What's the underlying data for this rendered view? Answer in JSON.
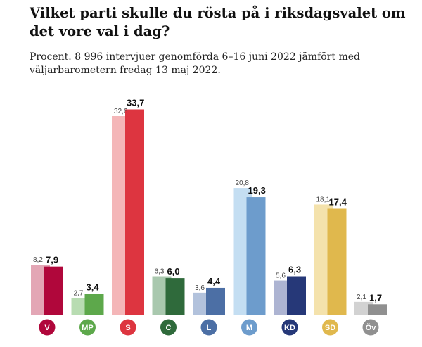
{
  "title": "Vilket parti skulle du rösta på i riksdagsvalet om det vore val i dag?",
  "subtitle": "Procent. 8 996 intervjuer genomförda 6–16 juni 2022 jämfört med väljarbarometern fredag 13 maj 2022.",
  "chart_data": {
    "type": "bar",
    "categories": [
      "V",
      "MP",
      "S",
      "C",
      "L",
      "M",
      "KD",
      "SD",
      "Öv"
    ],
    "series": [
      {
        "values": [
          8.2,
          2.7,
          32.6,
          6.3,
          3.6,
          20.8,
          5.6,
          18.1,
          2.1
        ]
      },
      {
        "values": [
          7.9,
          3.4,
          33.7,
          6.0,
          4.4,
          19.3,
          6.3,
          17.4,
          1.7
        ]
      }
    ],
    "value_labels_prev": [
      "8,2",
      "2,7",
      "32,6",
      "6,3",
      "3,6",
      "20,8",
      "5,6",
      "18,1",
      "2,1"
    ],
    "value_labels_curr": [
      "7,9",
      "3,4",
      "33,7",
      "6,0",
      "4,4",
      "19,3",
      "6,3",
      "17,4",
      "1,7"
    ],
    "ylim": [
      0,
      34
    ],
    "grid": false,
    "legend": "none",
    "colors_prev": [
      "#e3a6b5",
      "#b8dcb2",
      "#f4b6b8",
      "#a9c8ae",
      "#b2c2dc",
      "#c4def2",
      "#adb4d2",
      "#f4e2ac",
      "#d2d2d2"
    ],
    "colors_curr": [
      "#b0073b",
      "#5da84b",
      "#dd3540",
      "#2f6a3b",
      "#4c6fa5",
      "#6d9ccc",
      "#263878",
      "#e0b84d",
      "#909090"
    ],
    "badge_colors": [
      "#b0073b",
      "#5da84b",
      "#dd3540",
      "#2f6a3b",
      "#4c6fa5",
      "#6d9ccc",
      "#263878",
      "#e0b84d",
      "#909090"
    ]
  }
}
